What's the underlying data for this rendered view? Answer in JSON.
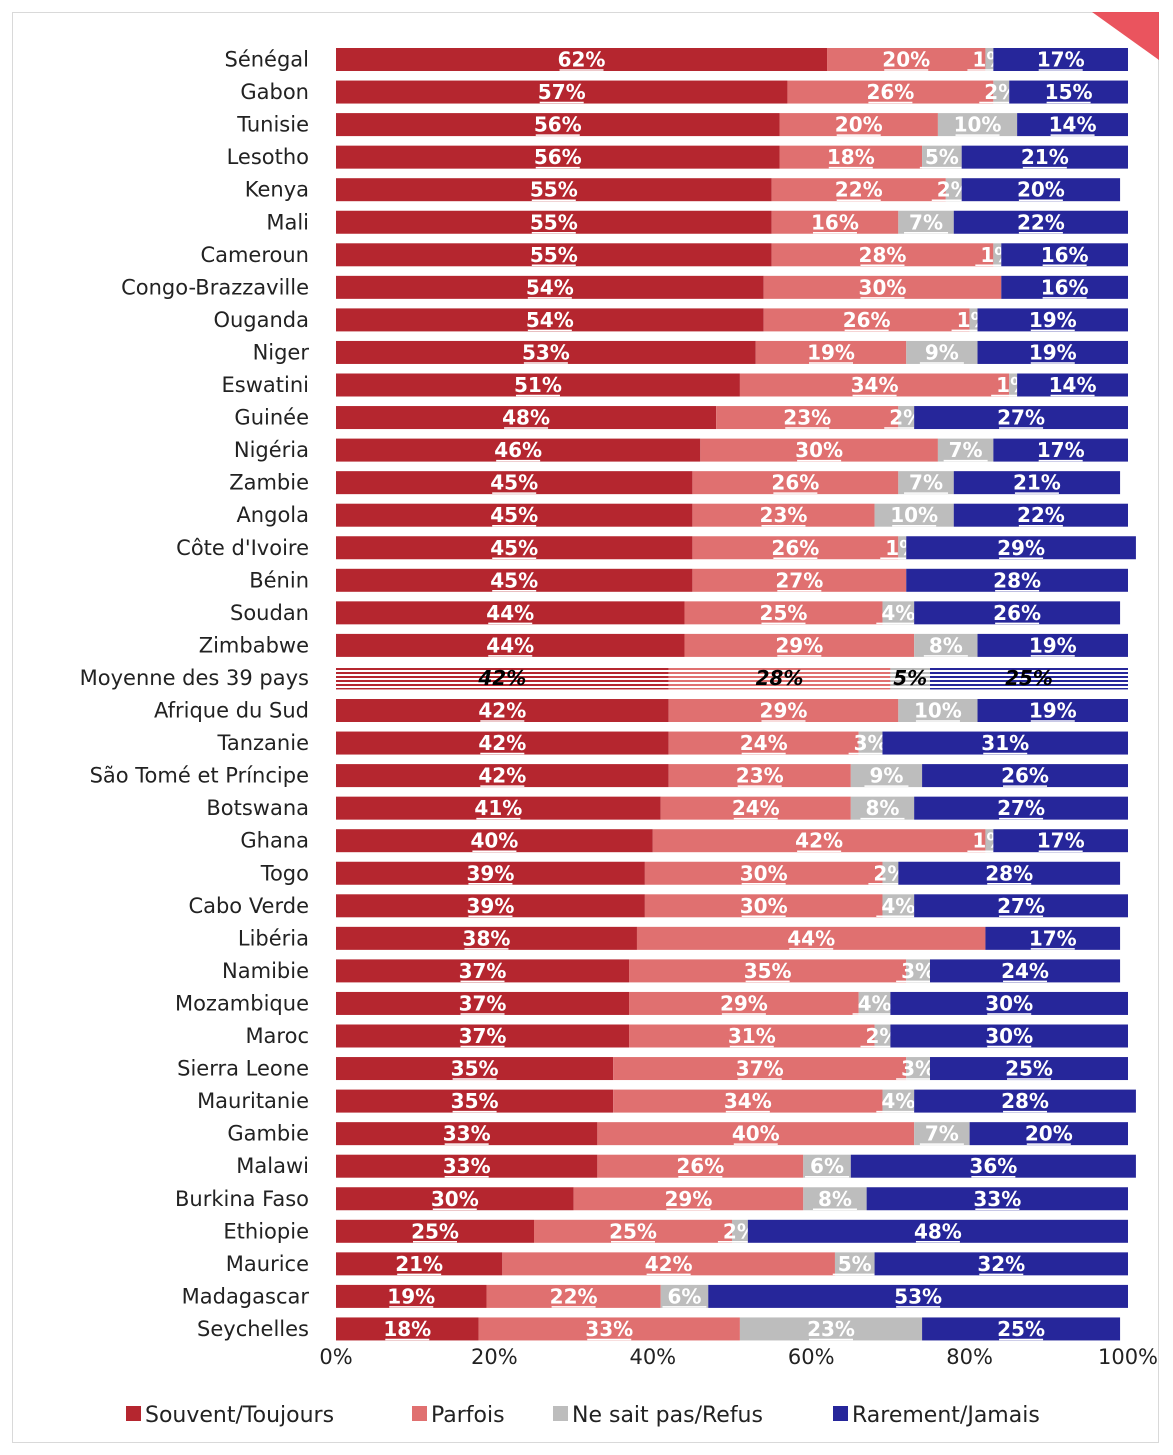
{
  "chart_data": {
    "type": "bar",
    "orientation": "horizontal",
    "stacked": true,
    "categories": [
      "Sénégal",
      "Gabon",
      "Tunisie",
      "Lesotho",
      "Kenya",
      "Mali",
      "Cameroun",
      "Congo-Brazzaville",
      "Ouganda",
      "Niger",
      "Eswatini",
      "Guinée",
      "Nigéria",
      "Zambie",
      "Angola",
      "Côte d'Ivoire",
      "Bénin",
      "Soudan",
      "Zimbabwe",
      "Moyenne des 39 pays",
      "Afrique du Sud",
      "Tanzanie",
      "São Tomé et Príncipe",
      "Botswana",
      "Ghana",
      "Togo",
      "Cabo Verde",
      "Libéria",
      "Namibie",
      "Mozambique",
      "Maroc",
      "Sierra Leone",
      "Mauritanie",
      "Gambie",
      "Malawi",
      "Burkina Faso",
      "Ethiopie",
      "Maurice",
      "Madagascar",
      "Seychelles"
    ],
    "highlight_category": "Moyenne des 39 pays",
    "series": [
      {
        "name": "Souvent/Toujours",
        "color": "#b5262f",
        "values": [
          62,
          57,
          56,
          56,
          55,
          55,
          55,
          54,
          54,
          53,
          51,
          48,
          46,
          45,
          45,
          45,
          45,
          44,
          44,
          42,
          42,
          42,
          42,
          41,
          40,
          39,
          39,
          38,
          37,
          37,
          37,
          35,
          35,
          33,
          33,
          30,
          25,
          21,
          19,
          18
        ]
      },
      {
        "name": "Parfois",
        "color": "#e07070",
        "values": [
          20,
          26,
          20,
          18,
          22,
          16,
          28,
          30,
          26,
          19,
          34,
          23,
          30,
          26,
          23,
          26,
          27,
          25,
          29,
          28,
          29,
          24,
          23,
          24,
          42,
          30,
          30,
          44,
          35,
          29,
          31,
          37,
          34,
          40,
          26,
          29,
          25,
          42,
          22,
          33
        ]
      },
      {
        "name": "Ne sait pas/Refus",
        "color": "#bdbdbd",
        "values": [
          1,
          2,
          10,
          5,
          2,
          7,
          1,
          0,
          1,
          9,
          1,
          2,
          7,
          7,
          10,
          1,
          0,
          4,
          8,
          5,
          10,
          3,
          9,
          8,
          1,
          2,
          4,
          0,
          3,
          4,
          2,
          3,
          4,
          7,
          6,
          8,
          2,
          5,
          6,
          23
        ]
      },
      {
        "name": "Rarement/Jamais",
        "color": "#26269a",
        "values": [
          17,
          15,
          14,
          21,
          20,
          22,
          16,
          16,
          19,
          19,
          14,
          27,
          17,
          21,
          22,
          29,
          28,
          26,
          19,
          25,
          19,
          31,
          26,
          27,
          17,
          28,
          27,
          17,
          24,
          30,
          30,
          25,
          28,
          20,
          36,
          33,
          48,
          32,
          53,
          25
        ]
      }
    ],
    "xaxis": {
      "ticks": [
        "0%",
        "20%",
        "40%",
        "60%",
        "80%",
        "100%"
      ],
      "range": [
        0,
        100
      ]
    },
    "grid": false,
    "legend_position": "bottom"
  }
}
